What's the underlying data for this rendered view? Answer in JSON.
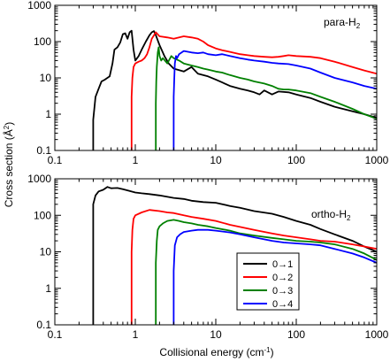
{
  "figure": {
    "ylabel": "Cross section (Å",
    "ylabel_sup": "2",
    "ylabel_end": ")",
    "xlabel": "Collisional energy (cm",
    "xlabel_sup": "-1",
    "xlabel_end": ")"
  },
  "chart_data": [
    {
      "type": "line",
      "title": "para-H",
      "title_sub": "2",
      "xscale": "log",
      "yscale": "log",
      "xlim": [
        0.1,
        1000
      ],
      "ylim": [
        0.1,
        1000
      ],
      "xticks": [
        "0.1",
        "1",
        "10",
        "100",
        "1000"
      ],
      "yticks": [
        "0.1",
        "1",
        "10",
        "100",
        "1000"
      ],
      "grid": false,
      "series": [
        {
          "name": "0→1",
          "color": "#000000",
          "points": [
            [
              0.3,
              0.1
            ],
            [
              0.3,
              0.7
            ],
            [
              0.32,
              3
            ],
            [
              0.35,
              5
            ],
            [
              0.38,
              8
            ],
            [
              0.42,
              9
            ],
            [
              0.48,
              11
            ],
            [
              0.52,
              25
            ],
            [
              0.55,
              60
            ],
            [
              0.6,
              70
            ],
            [
              0.65,
              95
            ],
            [
              0.7,
              160
            ],
            [
              0.75,
              170
            ],
            [
              0.8,
              120
            ],
            [
              0.85,
              180
            ],
            [
              0.9,
              200
            ],
            [
              0.95,
              60
            ],
            [
              1.0,
              30
            ],
            [
              1.1,
              40
            ],
            [
              1.2,
              60
            ],
            [
              1.35,
              100
            ],
            [
              1.5,
              150
            ],
            [
              1.6,
              180
            ],
            [
              1.7,
              195
            ],
            [
              1.8,
              150
            ],
            [
              2.0,
              80
            ],
            [
              2.3,
              40
            ],
            [
              2.6,
              25
            ],
            [
              3.0,
              18
            ],
            [
              4,
              15
            ],
            [
              5,
              20
            ],
            [
              6,
              13
            ],
            [
              8,
              11
            ],
            [
              10,
              9
            ],
            [
              12,
              7.5
            ],
            [
              15,
              6
            ],
            [
              20,
              5
            ],
            [
              25,
              4.5
            ],
            [
              30,
              4
            ],
            [
              35,
              3.5
            ],
            [
              40,
              4.5
            ],
            [
              50,
              3.5
            ],
            [
              60,
              4.2
            ],
            [
              80,
              4
            ],
            [
              100,
              3.5
            ],
            [
              150,
              2.8
            ],
            [
              200,
              2.2
            ],
            [
              300,
              1.6
            ],
            [
              500,
              1.2
            ],
            [
              700,
              1.0
            ],
            [
              1000,
              0.8
            ]
          ]
        },
        {
          "name": "0→2",
          "color": "#ff0000",
          "points": [
            [
              0.9,
              0.1
            ],
            [
              0.9,
              3
            ],
            [
              0.92,
              10
            ],
            [
              0.95,
              20
            ],
            [
              1.0,
              25
            ],
            [
              1.1,
              28
            ],
            [
              1.2,
              30
            ],
            [
              1.3,
              35
            ],
            [
              1.4,
              45
            ],
            [
              1.5,
              70
            ],
            [
              1.6,
              120
            ],
            [
              1.8,
              180
            ],
            [
              2.0,
              140
            ],
            [
              2.5,
              130
            ],
            [
              3,
              120
            ],
            [
              4,
              140
            ],
            [
              5,
              130
            ],
            [
              6,
              120
            ],
            [
              7,
              100
            ],
            [
              8,
              80
            ],
            [
              10,
              65
            ],
            [
              12,
              58
            ],
            [
              15,
              52
            ],
            [
              20,
              45
            ],
            [
              25,
              42
            ],
            [
              30,
              40
            ],
            [
              40,
              38
            ],
            [
              50,
              37
            ],
            [
              60,
              38
            ],
            [
              70,
              40
            ],
            [
              80,
              42
            ],
            [
              100,
              40
            ],
            [
              150,
              38
            ],
            [
              200,
              35
            ],
            [
              300,
              28
            ],
            [
              500,
              20
            ],
            [
              700,
              16
            ],
            [
              1000,
              13
            ]
          ]
        },
        {
          "name": "0→3",
          "color": "#008000",
          "points": [
            [
              1.8,
              0.1
            ],
            [
              1.8,
              2
            ],
            [
              1.82,
              8
            ],
            [
              1.85,
              20
            ],
            [
              1.9,
              50
            ],
            [
              1.95,
              70
            ],
            [
              2.0,
              40
            ],
            [
              2.1,
              30
            ],
            [
              2.2,
              35
            ],
            [
              2.5,
              25
            ],
            [
              2.8,
              40
            ],
            [
              3,
              35
            ],
            [
              3.5,
              30
            ],
            [
              4,
              25
            ],
            [
              5,
              22
            ],
            [
              6,
              20
            ],
            [
              7,
              18
            ],
            [
              8,
              17
            ],
            [
              10,
              15
            ],
            [
              12,
              14
            ],
            [
              15,
              12
            ],
            [
              20,
              10
            ],
            [
              25,
              9
            ],
            [
              30,
              8
            ],
            [
              40,
              7
            ],
            [
              50,
              6
            ],
            [
              60,
              5
            ],
            [
              70,
              4.8
            ],
            [
              80,
              4.8
            ],
            [
              100,
              4.5
            ],
            [
              150,
              3.8
            ],
            [
              200,
              3
            ],
            [
              300,
              2.2
            ],
            [
              500,
              1.4
            ],
            [
              700,
              1.0
            ],
            [
              1000,
              0.75
            ]
          ]
        },
        {
          "name": "0→4",
          "color": "#0000ff",
          "points": [
            [
              3.0,
              0.1
            ],
            [
              3.0,
              3
            ],
            [
              3.05,
              10
            ],
            [
              3.1,
              25
            ],
            [
              3.2,
              40
            ],
            [
              3.3,
              35
            ],
            [
              3.5,
              45
            ],
            [
              4,
              55
            ],
            [
              5,
              50
            ],
            [
              6,
              48
            ],
            [
              7,
              50
            ],
            [
              8,
              45
            ],
            [
              10,
              42
            ],
            [
              12,
              45
            ],
            [
              15,
              40
            ],
            [
              20,
              35
            ],
            [
              25,
              32
            ],
            [
              30,
              30
            ],
            [
              40,
              28
            ],
            [
              50,
              26
            ],
            [
              60,
              25
            ],
            [
              80,
              24
            ],
            [
              100,
              22
            ],
            [
              150,
              18
            ],
            [
              200,
              14
            ],
            [
              300,
              10
            ],
            [
              500,
              7.5
            ],
            [
              700,
              6
            ],
            [
              1000,
              5
            ]
          ]
        }
      ]
    },
    {
      "type": "line",
      "title": "ortho-H",
      "title_sub": "2",
      "xscale": "log",
      "yscale": "log",
      "xlim": [
        0.1,
        1000
      ],
      "ylim": [
        0.1,
        1000
      ],
      "xticks": [
        "0.1",
        "1",
        "10",
        "100",
        "1000"
      ],
      "yticks": [
        "0.1",
        "1",
        "10",
        "100",
        "1000"
      ],
      "grid": false,
      "legend_position": "center-right",
      "series": [
        {
          "name": "0→1",
          "color": "#000000",
          "points": [
            [
              0.3,
              0.1
            ],
            [
              0.3,
              200
            ],
            [
              0.32,
              350
            ],
            [
              0.35,
              450
            ],
            [
              0.4,
              500
            ],
            [
              0.45,
              600
            ],
            [
              0.5,
              550
            ],
            [
              0.6,
              560
            ],
            [
              0.7,
              520
            ],
            [
              0.8,
              480
            ],
            [
              1.0,
              420
            ],
            [
              1.2,
              400
            ],
            [
              1.5,
              380
            ],
            [
              2,
              350
            ],
            [
              3,
              300
            ],
            [
              4,
              280
            ],
            [
              5,
              250
            ],
            [
              7,
              230
            ],
            [
              10,
              220
            ],
            [
              15,
              180
            ],
            [
              20,
              160
            ],
            [
              30,
              130
            ],
            [
              50,
              110
            ],
            [
              70,
              90
            ],
            [
              100,
              70
            ],
            [
              150,
              55
            ],
            [
              200,
              42
            ],
            [
              300,
              30
            ],
            [
              500,
              20
            ],
            [
              700,
              14
            ],
            [
              1000,
              10
            ]
          ]
        },
        {
          "name": "0→2",
          "color": "#ff0000",
          "points": [
            [
              0.9,
              0.1
            ],
            [
              0.9,
              10
            ],
            [
              0.92,
              40
            ],
            [
              0.95,
              80
            ],
            [
              1.0,
              100
            ],
            [
              1.2,
              120
            ],
            [
              1.5,
              140
            ],
            [
              2,
              130
            ],
            [
              2.5,
              120
            ],
            [
              3,
              115
            ],
            [
              4,
              100
            ],
            [
              5,
              90
            ],
            [
              7,
              80
            ],
            [
              10,
              70
            ],
            [
              15,
              55
            ],
            [
              20,
              48
            ],
            [
              30,
              40
            ],
            [
              50,
              32
            ],
            [
              70,
              28
            ],
            [
              100,
              25
            ],
            [
              150,
              22
            ],
            [
              200,
              20
            ],
            [
              300,
              19
            ],
            [
              500,
              16
            ],
            [
              700,
              14
            ],
            [
              1000,
              12
            ]
          ]
        },
        {
          "name": "0→3",
          "color": "#008000",
          "points": [
            [
              1.8,
              0.1
            ],
            [
              1.8,
              5
            ],
            [
              1.85,
              20
            ],
            [
              1.9,
              40
            ],
            [
              2.0,
              50
            ],
            [
              2.2,
              60
            ],
            [
              2.5,
              70
            ],
            [
              3,
              75
            ],
            [
              3.5,
              70
            ],
            [
              4,
              65
            ],
            [
              5,
              60
            ],
            [
              6,
              55
            ],
            [
              8,
              50
            ],
            [
              10,
              45
            ],
            [
              15,
              38
            ],
            [
              20,
              32
            ],
            [
              30,
              28
            ],
            [
              50,
              24
            ],
            [
              70,
              22
            ],
            [
              100,
              20
            ],
            [
              150,
              19
            ],
            [
              200,
              18
            ],
            [
              300,
              16
            ],
            [
              500,
              12
            ],
            [
              700,
              9
            ],
            [
              1000,
              6
            ]
          ]
        },
        {
          "name": "0→4",
          "color": "#0000ff",
          "points": [
            [
              3.0,
              0.1
            ],
            [
              3.0,
              3
            ],
            [
              3.1,
              15
            ],
            [
              3.3,
              25
            ],
            [
              3.6,
              30
            ],
            [
              4,
              35
            ],
            [
              5,
              38
            ],
            [
              6,
              40
            ],
            [
              8,
              40
            ],
            [
              10,
              38
            ],
            [
              15,
              34
            ],
            [
              20,
              30
            ],
            [
              30,
              25
            ],
            [
              50,
              20
            ],
            [
              70,
              18
            ],
            [
              100,
              17
            ],
            [
              150,
              16
            ],
            [
              200,
              15
            ],
            [
              300,
              12
            ],
            [
              500,
              9
            ],
            [
              700,
              7
            ],
            [
              1000,
              5
            ]
          ]
        }
      ]
    }
  ]
}
